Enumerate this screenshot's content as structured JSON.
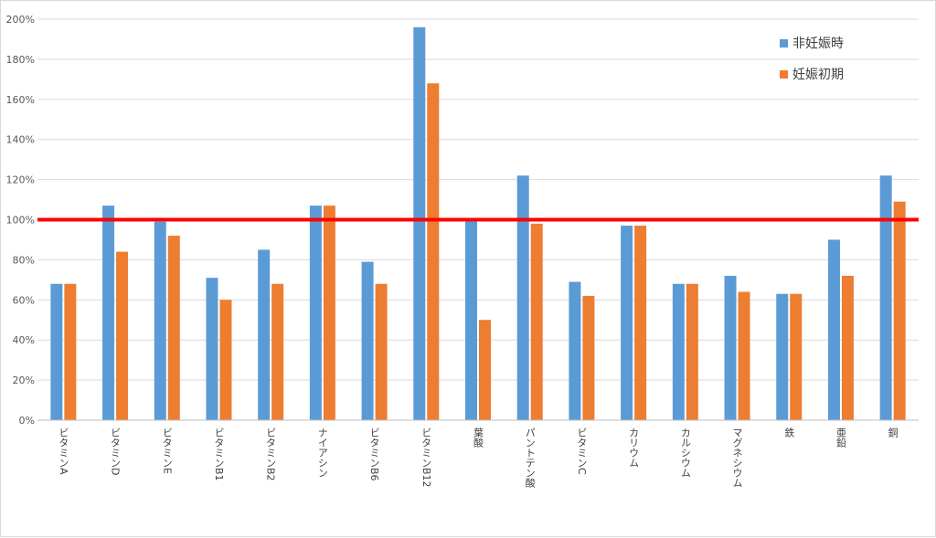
{
  "chart_data": {
    "type": "bar",
    "categories": [
      "ビタミンA",
      "ビタミンD",
      "ビタミンE",
      "ビタミンB1",
      "ビタミンB2",
      "ナイアシン",
      "ビタミンB6",
      "ビタミンB12",
      "葉酸",
      "パントテン酸",
      "ビタミンC",
      "カリウム",
      "カルシウム",
      "マグネシウム",
      "鉄",
      "亜鉛",
      "銅"
    ],
    "series": [
      {
        "name": "非妊娠時",
        "color": "#5b9bd5",
        "values": [
          68,
          107,
          99,
          71,
          85,
          107,
          79,
          196,
          100,
          122,
          69,
          97,
          68,
          72,
          63,
          90,
          122
        ]
      },
      {
        "name": "妊娠初期",
        "color": "#ed7d31",
        "values": [
          68,
          84,
          92,
          60,
          68,
          107,
          68,
          168,
          50,
          98,
          62,
          97,
          68,
          64,
          63,
          72,
          109
        ]
      }
    ],
    "y_ticks": [
      "0%",
      "20%",
      "40%",
      "60%",
      "80%",
      "100%",
      "120%",
      "140%",
      "160%",
      "180%",
      "200%"
    ],
    "ylim": [
      0,
      200
    ],
    "reference_line": {
      "value": 100,
      "color": "#ff0000"
    },
    "grid": true,
    "legend_position": "top-right"
  }
}
